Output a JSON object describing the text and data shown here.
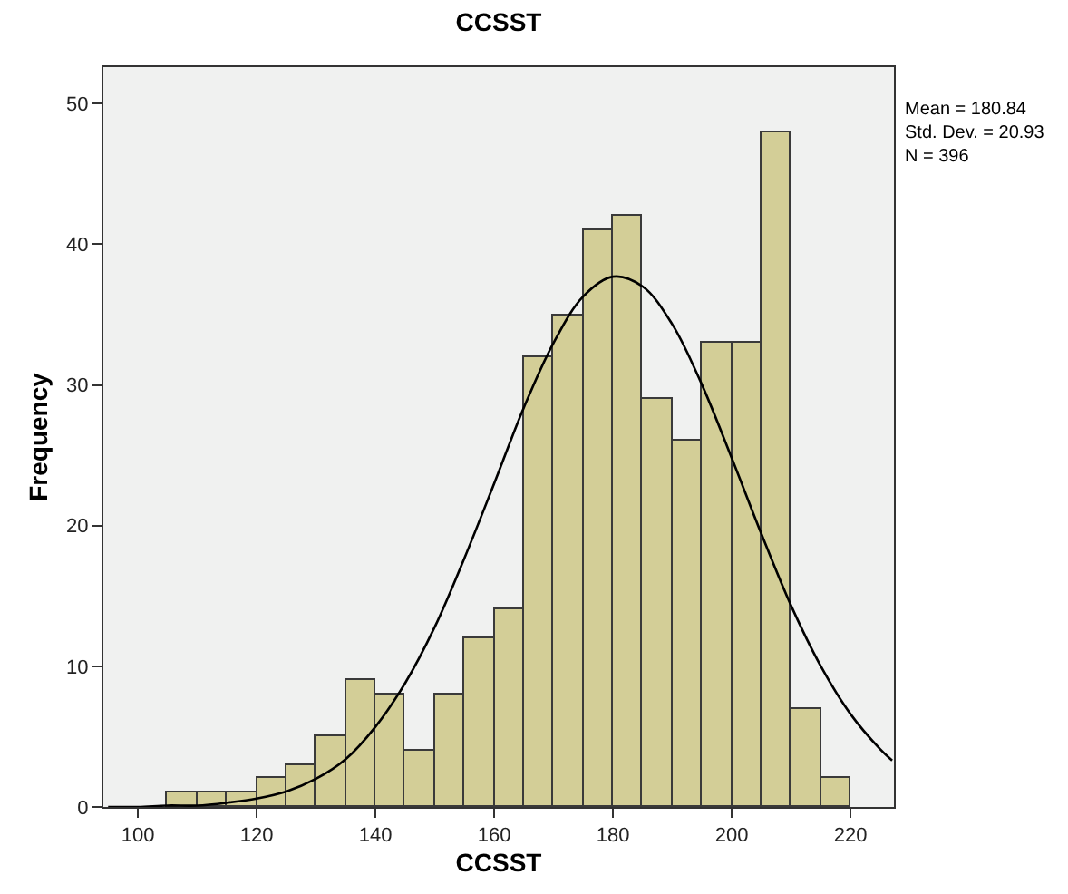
{
  "chart_data": {
    "type": "histogram",
    "title": "CCSST",
    "xlabel": "CCSST",
    "ylabel": "Frequency",
    "bins": [
      105,
      110,
      115,
      120,
      125,
      130,
      135,
      140,
      145,
      150,
      155,
      160,
      165,
      170,
      175,
      180,
      185,
      190,
      195,
      200,
      205,
      210,
      215,
      220
    ],
    "values": [
      1,
      1,
      1,
      2,
      3,
      5,
      9,
      8,
      4,
      8,
      12,
      14,
      32,
      35,
      41,
      42,
      29,
      26,
      33,
      33,
      48,
      7,
      2
    ],
    "color": "#d3ce97",
    "series": [
      {
        "type": "line",
        "color": "#000000",
        "x": [
          95,
          100,
          105,
          110,
          115,
          120,
          125,
          130,
          135,
          140,
          145,
          150,
          155,
          160,
          165,
          170,
          175,
          180,
          185,
          190,
          195,
          200,
          205,
          210,
          215,
          220,
          225,
          227
        ],
        "values": [
          0,
          0,
          0.1,
          0.1,
          0.3,
          0.6,
          1.1,
          2,
          3.4,
          5.7,
          8.8,
          12.8,
          17.7,
          23,
          28.4,
          33,
          36.3,
          37.7,
          37,
          34.3,
          30,
          24.8,
          19.4,
          14.3,
          10,
          6.6,
          4.1,
          3.3
        ]
      }
    ],
    "xlim": [
      94.2,
      227.3
    ],
    "xticks": [
      100,
      120,
      140,
      160,
      180,
      200,
      220
    ],
    "ylim": [
      0,
      52.6
    ],
    "yticks": [
      0,
      10,
      20,
      30,
      40,
      50
    ],
    "annotations": [
      "Mean = 180.84\nStd. Dev. = 20.93\nN = 396"
    ]
  }
}
